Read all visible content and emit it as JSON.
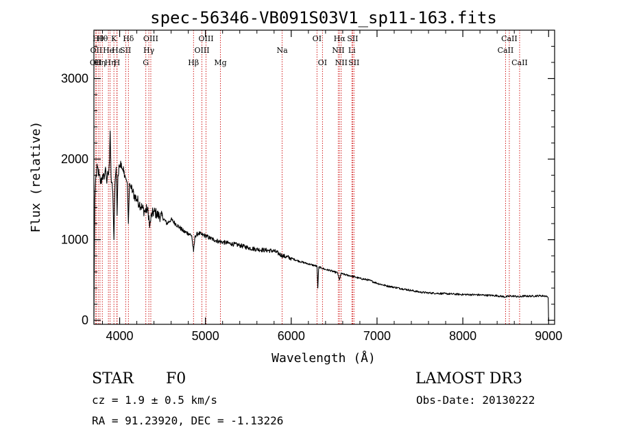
{
  "chart_data": {
    "type": "line",
    "title": "spec-56346-VB091S03V1_sp11-163.fits",
    "xlabel": "Wavelength (Å)",
    "ylabel": "Flux (relative)",
    "xlim": [
      3700,
      9070
    ],
    "ylim": [
      -50,
      3600
    ],
    "xticks": [
      4000,
      5000,
      6000,
      7000,
      8000,
      9000
    ],
    "yticks": [
      0,
      1000,
      2000,
      3000
    ],
    "grid": false,
    "series": [
      {
        "name": "spectrum",
        "x": [
          3700,
          3705,
          3710,
          3720,
          3740,
          3760,
          3780,
          3800,
          3820,
          3835,
          3850,
          3860,
          3870,
          3880,
          3889,
          3900,
          3920,
          3933,
          3945,
          3960,
          3970,
          3980,
          4000,
          4020,
          4040,
          4060,
          4075,
          4090,
          4102,
          4115,
          4130,
          4150,
          4170,
          4200,
          4230,
          4260,
          4290,
          4320,
          4340,
          4350,
          4370,
          4400,
          4450,
          4500,
          4550,
          4600,
          4650,
          4700,
          4750,
          4800,
          4840,
          4861,
          4880,
          4920,
          4960,
          5000,
          5050,
          5100,
          5150,
          5200,
          5300,
          5400,
          5500,
          5600,
          5700,
          5800,
          5900,
          6000,
          6100,
          6200,
          6300,
          6310,
          6320,
          6350,
          6400,
          6450,
          6500,
          6540,
          6562,
          6580,
          6650,
          6700,
          6800,
          6900,
          7000,
          7100,
          7200,
          7300,
          7400,
          7500,
          7600,
          7700,
          7800,
          7900,
          8000,
          8100,
          8200,
          8300,
          8400,
          8498,
          8542,
          8600,
          8662,
          8700,
          8800,
          8900,
          8980,
          8995,
          9000
        ],
        "values": [
          50,
          800,
          1500,
          1750,
          1900,
          1800,
          1700,
          1800,
          1750,
          1900,
          1700,
          1850,
          1800,
          1950,
          2350,
          1800,
          1600,
          1000,
          1700,
          1900,
          1300,
          1800,
          1900,
          1950,
          1850,
          1800,
          1750,
          1700,
          1200,
          1700,
          1650,
          1600,
          1550,
          1500,
          1450,
          1400,
          1350,
          1380,
          1300,
          1150,
          1300,
          1350,
          1300,
          1280,
          1200,
          1250,
          1200,
          1150,
          1100,
          1080,
          1050,
          850,
          1050,
          1080,
          1060,
          1050,
          1020,
          1000,
          980,
          970,
          950,
          930,
          900,
          880,
          870,
          860,
          800,
          770,
          730,
          700,
          670,
          400,
          660,
          650,
          630,
          620,
          600,
          590,
          500,
          580,
          560,
          550,
          520,
          500,
          460,
          430,
          410,
          390,
          370,
          350,
          340,
          335,
          330,
          325,
          320,
          318,
          315,
          310,
          305,
          290,
          300,
          300,
          290,
          300,
          300,
          305,
          300,
          280,
          0
        ]
      }
    ],
    "lines": [
      {
        "wave": 3722,
        "label": "OII",
        "row": 2
      },
      {
        "wave": 3727,
        "label": "OII",
        "row": 1
      },
      {
        "wave": 3750,
        "label": "Hθ",
        "row": 0
      },
      {
        "wave": 3771,
        "label": "Hη",
        "row": 2
      },
      {
        "wave": 3798,
        "label": "Hθ",
        "row": 0
      },
      {
        "wave": 3869,
        "label": "He",
        "row": 1
      },
      {
        "wave": 3889,
        "label": "Hη",
        "row": 2
      },
      {
        "wave": 3933,
        "label": "K",
        "row": 0
      },
      {
        "wave": 3968,
        "label": "H",
        "row": 2
      },
      {
        "wave": 3970,
        "label": "Hε",
        "row": 1
      },
      {
        "wave": 4070,
        "label": "SII",
        "row": 1
      },
      {
        "wave": 4102,
        "label": "Hδ",
        "row": 0
      },
      {
        "wave": 4305,
        "label": "G",
        "row": 2
      },
      {
        "wave": 4340,
        "label": "Hγ",
        "row": 1
      },
      {
        "wave": 4363,
        "label": "OIII",
        "row": 0
      },
      {
        "wave": 4861,
        "label": "Hβ",
        "row": 2
      },
      {
        "wave": 4959,
        "label": "OIII",
        "row": 1
      },
      {
        "wave": 5007,
        "label": "OIII",
        "row": 0
      },
      {
        "wave": 5175,
        "label": "Mg",
        "row": 2
      },
      {
        "wave": 5894,
        "label": "Na",
        "row": 1
      },
      {
        "wave": 6300,
        "label": "OI",
        "row": 0
      },
      {
        "wave": 6364,
        "label": "OI",
        "row": 2
      },
      {
        "wave": 6548,
        "label": "NII",
        "row": 1
      },
      {
        "wave": 6563,
        "label": "Hα",
        "row": 0
      },
      {
        "wave": 6583,
        "label": "NII",
        "row": 2
      },
      {
        "wave": 6707,
        "label": "Li",
        "row": 1
      },
      {
        "wave": 6716,
        "label": "SII",
        "row": 0
      },
      {
        "wave": 6731,
        "label": "SII",
        "row": 2
      },
      {
        "wave": 8498,
        "label": "CaII",
        "row": 1
      },
      {
        "wave": 8542,
        "label": "CaII",
        "row": 0
      },
      {
        "wave": 8662,
        "label": "CaII",
        "row": 2
      }
    ],
    "line_color": "#cc0000"
  },
  "info": {
    "class_label": "STAR",
    "subclass": "F0",
    "survey": "LAMOST DR3",
    "cz": "cz = 1.9 ± 0.5 km/s",
    "obs_date": "Obs-Date: 20130222",
    "coords": "RA =  91.23920, DEC =  -1.13226"
  }
}
